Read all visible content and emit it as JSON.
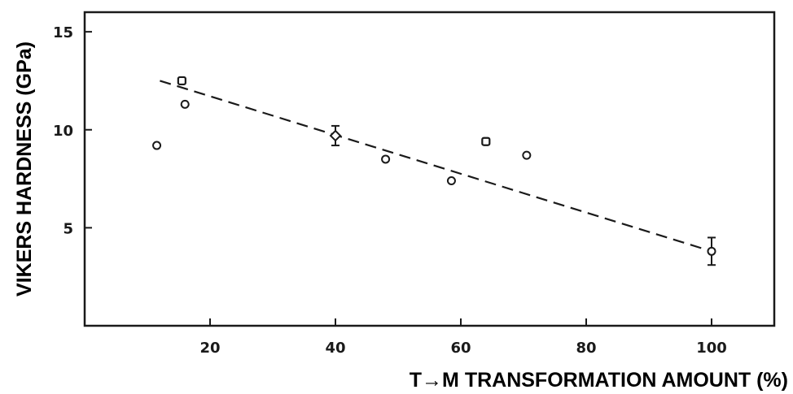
{
  "chart_data": {
    "type": "scatter",
    "title": "",
    "xlabel": "T→M TRANSFORMATION AMOUNT (%)",
    "ylabel": "VIKERS HARDNESS (GPa)",
    "xlim": [
      0,
      110
    ],
    "ylim": [
      0,
      16
    ],
    "x_ticks": [
      20,
      40,
      60,
      80,
      100
    ],
    "x_tick_labels": [
      "20",
      "40",
      "60",
      "80",
      "100"
    ],
    "y_ticks": [
      5,
      10,
      15
    ],
    "y_tick_labels": [
      "5",
      "10",
      "15"
    ],
    "grid": false,
    "legend": "none",
    "series": [
      {
        "marker": "circle",
        "x": [
          11.5,
          16,
          48,
          58.5,
          70.5,
          100
        ],
        "y": [
          9.2,
          11.3,
          8.5,
          7.4,
          8.7,
          3.8
        ]
      },
      {
        "marker": "square",
        "x": [
          15.5,
          64
        ],
        "y": [
          12.5,
          9.4
        ]
      },
      {
        "marker": "open-diamond",
        "x": [
          40
        ],
        "y": [
          9.7
        ]
      }
    ],
    "error_bars": [
      {
        "x": 40,
        "y": 9.7,
        "low": 9.2,
        "high": 10.2
      },
      {
        "x": 100,
        "y": 3.8,
        "low": 3.1,
        "high": 4.5
      }
    ],
    "fit_line": {
      "style": "dashed",
      "x": [
        12,
        100
      ],
      "y": [
        12.5,
        3.8
      ]
    },
    "colors": {
      "ink": "#1a1a1a",
      "background": "#ffffff"
    }
  }
}
